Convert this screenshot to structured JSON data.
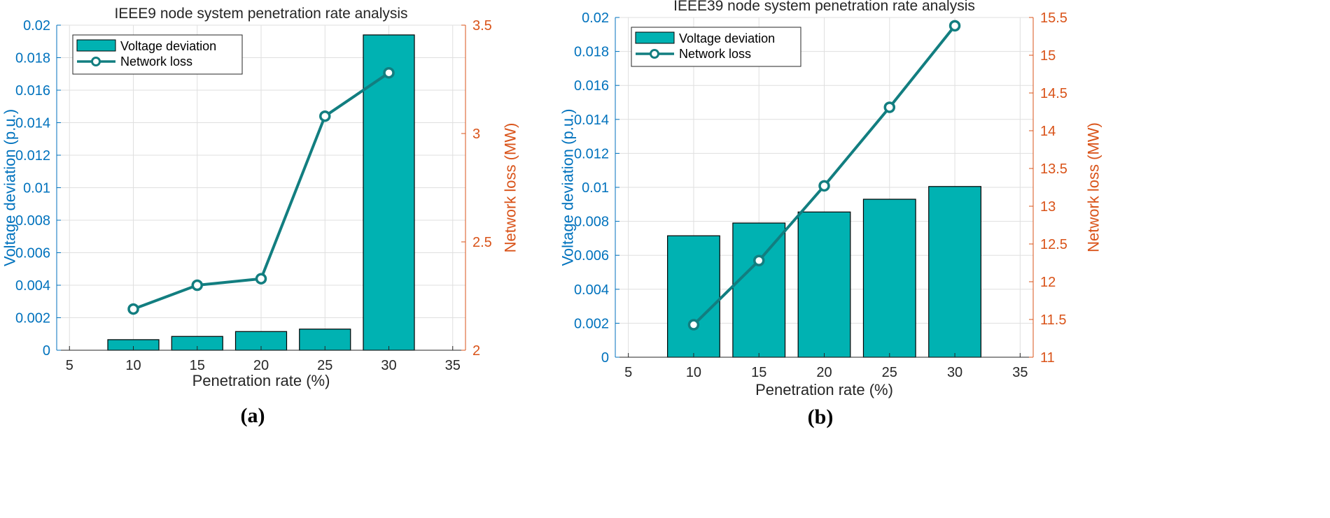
{
  "figure": {
    "panel_labels": [
      "(a)",
      "(b)"
    ]
  },
  "colors": {
    "bar_fill": "#00B2B2",
    "bar_edge": "#000000",
    "line": "#127E80",
    "left_axis": "#0072BD",
    "right_axis": "#D95319",
    "grid": "#DFDFDF",
    "text": "#262626"
  },
  "chart_data": [
    {
      "type": "bar+line",
      "title": "IEEE9 node system penetration rate analysis",
      "xlabel": "Penetration rate (%)",
      "ylabel_left": "Voltage deviation (p.u.)",
      "ylabel_right": "Network loss (MW)",
      "xlim": [
        4,
        36
      ],
      "xticks": [
        5,
        10,
        15,
        20,
        25,
        30,
        35
      ],
      "ylim_left": [
        0,
        0.02
      ],
      "yticks_left": [
        0,
        0.002,
        0.004,
        0.006,
        0.008,
        0.01,
        0.012,
        0.014,
        0.016,
        0.018,
        0.02
      ],
      "ylim_right": [
        2,
        3.5
      ],
      "yticks_right": [
        2,
        2.5,
        3,
        3.5
      ],
      "grid": true,
      "legend_position": "top-left",
      "bar_width": 4,
      "series": [
        {
          "name": "Voltage deviation",
          "type": "bar",
          "axis": "left",
          "x": [
            10,
            15,
            20,
            25,
            30
          ],
          "values": [
            0.00065,
            0.00085,
            0.00115,
            0.0013,
            0.0194
          ]
        },
        {
          "name": "Network loss",
          "type": "line",
          "axis": "right",
          "marker": "circle",
          "x": [
            10,
            15,
            20,
            25,
            30
          ],
          "values": [
            2.19,
            2.3,
            2.33,
            3.08,
            3.28
          ]
        }
      ]
    },
    {
      "type": "bar+line",
      "title": "IEEE39 node system penetration rate analysis",
      "xlabel": "Penetration rate (%)",
      "ylabel_left": "Voltage deviation (p.u.)",
      "ylabel_right": "Network loss (MW)",
      "xlim": [
        4,
        36
      ],
      "xticks": [
        5,
        10,
        15,
        20,
        25,
        30,
        35
      ],
      "ylim_left": [
        0,
        0.02
      ],
      "yticks_left": [
        0,
        0.002,
        0.004,
        0.006,
        0.008,
        0.01,
        0.012,
        0.014,
        0.016,
        0.018,
        0.02
      ],
      "ylim_right": [
        11,
        15.5
      ],
      "yticks_right": [
        11,
        11.5,
        12,
        12.5,
        13,
        13.5,
        14,
        14.5,
        15,
        15.5
      ],
      "grid": true,
      "legend_position": "top-left",
      "bar_width": 4,
      "series": [
        {
          "name": "Voltage deviation",
          "type": "bar",
          "axis": "left",
          "x": [
            10,
            15,
            20,
            25,
            30
          ],
          "values": [
            0.00715,
            0.0079,
            0.00855,
            0.0093,
            0.01005
          ]
        },
        {
          "name": "Network loss",
          "type": "line",
          "axis": "right",
          "marker": "circle",
          "x": [
            10,
            15,
            20,
            25,
            30
          ],
          "values": [
            11.43,
            12.28,
            13.27,
            14.31,
            15.39
          ]
        }
      ]
    }
  ]
}
